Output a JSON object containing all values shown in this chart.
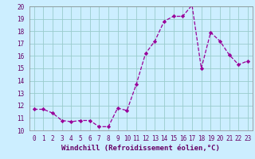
{
  "x": [
    0,
    1,
    2,
    3,
    4,
    5,
    6,
    7,
    8,
    9,
    10,
    11,
    12,
    13,
    14,
    15,
    16,
    17,
    18,
    19,
    20,
    21,
    22,
    23
  ],
  "y": [
    11.7,
    11.7,
    11.4,
    10.8,
    10.7,
    10.8,
    10.8,
    10.3,
    10.3,
    11.8,
    11.6,
    13.7,
    16.2,
    17.2,
    18.8,
    19.2,
    19.2,
    20.1,
    15.0,
    17.9,
    17.2,
    16.1,
    15.3,
    15.6
  ],
  "line_color": "#990099",
  "marker": "D",
  "markersize": 2.2,
  "linewidth": 0.9,
  "bg_color": "#cceeff",
  "grid_color": "#99cccc",
  "xlabel": "Windchill (Refroidissement éolien,°C)",
  "xlabel_fontsize": 6.5,
  "ylim": [
    10,
    20
  ],
  "xlim": [
    -0.5,
    23.5
  ],
  "yticks": [
    10,
    11,
    12,
    13,
    14,
    15,
    16,
    17,
    18,
    19,
    20
  ],
  "xticks": [
    0,
    1,
    2,
    3,
    4,
    5,
    6,
    7,
    8,
    9,
    10,
    11,
    12,
    13,
    14,
    15,
    16,
    17,
    18,
    19,
    20,
    21,
    22,
    23
  ],
  "tick_labelsize": 5.5,
  "spine_color": "#888888"
}
